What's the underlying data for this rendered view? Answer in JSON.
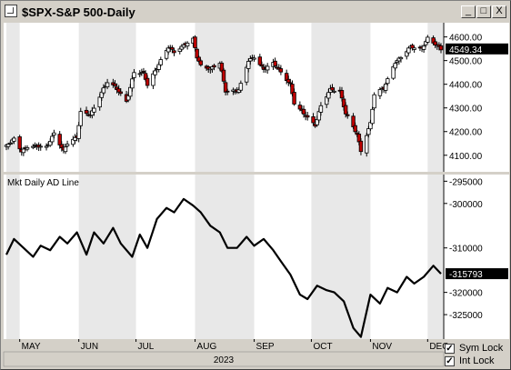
{
  "window": {
    "title": "$SPX-S&P 500-Daily",
    "buttons": [
      "_",
      "□",
      "X"
    ]
  },
  "price_panel": {
    "y_ticks": [
      4100,
      4200,
      4300,
      4400,
      4500,
      4600
    ],
    "y_tick_labels": [
      "4100.00",
      "4200.00",
      "4300.00",
      "4400.00",
      "4500.00",
      "4600.00"
    ],
    "last_value_label": "4549.34",
    "ylim": [
      4030,
      4660
    ]
  },
  "ad_panel": {
    "title": "Mkt Daily AD Line",
    "y_ticks": [
      -295000,
      -300000,
      -310000,
      -320000,
      -325000
    ],
    "y_tick_labels": [
      "-295000",
      "-300000",
      "-310000",
      "-320000",
      "-325000"
    ],
    "last_value_label": "-315793",
    "ylim": [
      -330500,
      -293500
    ]
  },
  "x_axis": {
    "months": [
      "MAY",
      "JUN",
      "JUL",
      "AUG",
      "SEP",
      "OCT",
      "NOV",
      "DEC"
    ],
    "year": "2023"
  },
  "footer": {
    "sym_lock_label": "Sym Lock",
    "int_lock_label": "Int Lock",
    "sym_lock_checked": true,
    "int_lock_checked": true
  },
  "colors": {
    "up_candle": "#ffffff",
    "down_candle": "#c00000",
    "line": "#000000",
    "background": "#ffffff",
    "shade": "#e8e8e8"
  },
  "chart_data": [
    {
      "type": "candlestick",
      "x_range": [
        "2023-04-24",
        "2023-12-08"
      ],
      "ylim": [
        4030,
        4660
      ],
      "close_path_points": [
        [
          "2023-04-24",
          4137
        ],
        [
          "2023-04-28",
          4169
        ],
        [
          "2023-05-02",
          4119
        ],
        [
          "2023-05-05",
          4136
        ],
        [
          "2023-05-10",
          4137
        ],
        [
          "2023-05-15",
          4136
        ],
        [
          "2023-05-19",
          4192
        ],
        [
          "2023-05-24",
          4115
        ],
        [
          "2023-05-26",
          4151
        ],
        [
          "2023-05-31",
          4179
        ],
        [
          "2023-06-02",
          4282
        ],
        [
          "2023-06-07",
          4267
        ],
        [
          "2023-06-09",
          4298
        ],
        [
          "2023-06-13",
          4369
        ],
        [
          "2023-06-16",
          4410
        ],
        [
          "2023-06-20",
          4388
        ],
        [
          "2023-06-26",
          4328
        ],
        [
          "2023-06-30",
          4450
        ],
        [
          "2023-07-05",
          4446
        ],
        [
          "2023-07-07",
          4398
        ],
        [
          "2023-07-12",
          4472
        ],
        [
          "2023-07-18",
          4555
        ],
        [
          "2023-07-21",
          4536
        ],
        [
          "2023-07-26",
          4566
        ],
        [
          "2023-07-31",
          4589
        ],
        [
          "2023-08-02",
          4513
        ],
        [
          "2023-08-04",
          4478
        ],
        [
          "2023-08-09",
          4467
        ],
        [
          "2023-08-14",
          4489
        ],
        [
          "2023-08-17",
          4370
        ],
        [
          "2023-08-18",
          4370
        ],
        [
          "2023-08-24",
          4376
        ],
        [
          "2023-08-29",
          4497
        ],
        [
          "2023-09-01",
          4515
        ],
        [
          "2023-09-06",
          4465
        ],
        [
          "2023-09-11",
          4487
        ],
        [
          "2023-09-15",
          4450
        ],
        [
          "2023-09-20",
          4402
        ],
        [
          "2023-09-22",
          4320
        ],
        [
          "2023-09-27",
          4274
        ],
        [
          "2023-10-03",
          4229
        ],
        [
          "2023-10-06",
          4308
        ],
        [
          "2023-10-11",
          4376
        ],
        [
          "2023-10-16",
          4373
        ],
        [
          "2023-10-19",
          4278
        ],
        [
          "2023-10-25",
          4186
        ],
        [
          "2023-10-27",
          4117
        ],
        [
          "2023-11-01",
          4237
        ],
        [
          "2023-11-03",
          4358
        ],
        [
          "2023-11-08",
          4382
        ],
        [
          "2023-11-14",
          4495
        ],
        [
          "2023-11-17",
          4514
        ],
        [
          "2023-11-22",
          4556
        ],
        [
          "2023-11-28",
          4554
        ],
        [
          "2023-12-01",
          4594
        ],
        [
          "2023-12-05",
          4567
        ],
        [
          "2023-12-08",
          4549.34
        ]
      ]
    },
    {
      "type": "line",
      "name": "Mkt Daily AD Line",
      "ylim": [
        -330500,
        -293500
      ],
      "x": [
        "2023-04-24",
        "2023-04-28",
        "2023-05-03",
        "2023-05-08",
        "2023-05-12",
        "2023-05-17",
        "2023-05-22",
        "2023-05-26",
        "2023-05-31",
        "2023-06-05",
        "2023-06-09",
        "2023-06-14",
        "2023-06-19",
        "2023-06-23",
        "2023-06-29",
        "2023-07-03",
        "2023-07-07",
        "2023-07-12",
        "2023-07-17",
        "2023-07-21",
        "2023-07-26",
        "2023-07-31",
        "2023-08-04",
        "2023-08-09",
        "2023-08-14",
        "2023-08-18",
        "2023-08-23",
        "2023-08-28",
        "2023-09-01",
        "2023-09-06",
        "2023-09-11",
        "2023-09-15",
        "2023-09-20",
        "2023-09-25",
        "2023-09-29",
        "2023-10-04",
        "2023-10-09",
        "2023-10-13",
        "2023-10-18",
        "2023-10-23",
        "2023-10-27",
        "2023-11-01",
        "2023-11-06",
        "2023-11-10",
        "2023-11-15",
        "2023-11-20",
        "2023-11-24",
        "2023-11-29",
        "2023-12-04",
        "2023-12-08"
      ],
      "y": [
        -311500,
        -308000,
        -310000,
        -312000,
        -309500,
        -310500,
        -307500,
        -309000,
        -306500,
        -311500,
        -306500,
        -309000,
        -305500,
        -309000,
        -312000,
        -307000,
        -310000,
        -303500,
        -301000,
        -302000,
        -299000,
        -300500,
        -302000,
        -305000,
        -306500,
        -310000,
        -310000,
        -307500,
        -309500,
        -308000,
        -310500,
        -313000,
        -316000,
        -320500,
        -321500,
        -318500,
        -319500,
        -320000,
        -322000,
        -328000,
        -330000,
        -320500,
        -322500,
        -319000,
        -320000,
        -316500,
        -318000,
        -316500,
        -314000,
        -315793
      ]
    }
  ]
}
